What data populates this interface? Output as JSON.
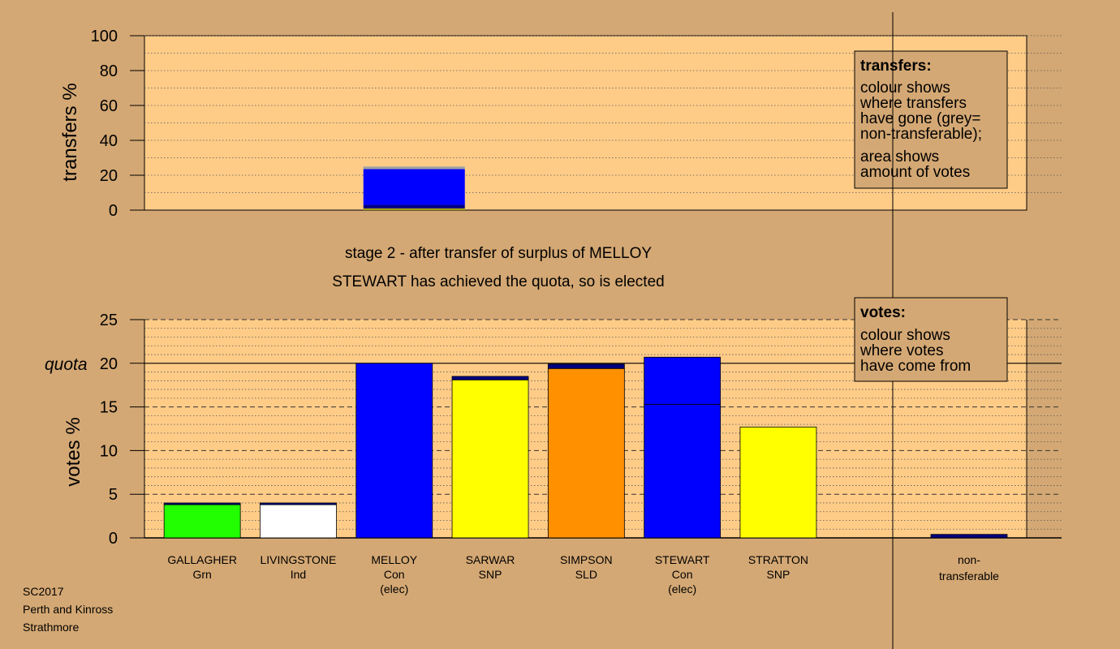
{
  "colors": {
    "background": "#d4a874",
    "panel": "#ffcc88",
    "grey": "#a0a0a0",
    "blue": "#0000ff",
    "yellow": "#ffff00",
    "orange": "#ff9000",
    "green": "#22ff00",
    "white": "#ffffff",
    "navy": "#000080",
    "olive": "#a0a000"
  },
  "stage_text": {
    "line1": "stage 2 - after transfer of surplus of MELLOY",
    "line2": "STEWART has achieved the quota, so is elected"
  },
  "footer": {
    "line1": "SC2017",
    "line2": "Perth and Kinross",
    "line3": "Strathmore"
  },
  "legend_transfers": {
    "title": "transfers:",
    "lines": [
      "colour shows",
      "where transfers",
      "have gone (grey=",
      "non-transferable);",
      "area shows",
      "amount of votes"
    ]
  },
  "legend_votes": {
    "title": "votes:",
    "lines": [
      "colour shows",
      "where votes",
      "have come from"
    ]
  },
  "chart_data": [
    {
      "type": "bar",
      "ylabel": "transfers %",
      "ylim": [
        0,
        100
      ],
      "yticks": [
        0,
        20,
        40,
        60,
        80,
        100
      ],
      "grid": "dotted",
      "legend": "top-right",
      "bars": [
        {
          "position": 3,
          "segments": [
            {
              "color": "olive",
              "from": 0,
              "to": 1
            },
            {
              "color": "navy",
              "from": 1,
              "to": 3
            },
            {
              "color": "blue",
              "from": 3,
              "to": 23.5
            },
            {
              "color": "grey",
              "from": 23.5,
              "to": 25
            }
          ]
        }
      ]
    },
    {
      "type": "bar",
      "ylabel": "votes %",
      "ylim": [
        0,
        25
      ],
      "yticks": [
        0,
        5,
        10,
        15,
        20,
        25
      ],
      "quota": 20,
      "quota_label": "quota",
      "grid": "dashed",
      "legend": "top-right",
      "categories": [
        {
          "name": "GALLAGHER",
          "party": "Grn",
          "status": "",
          "total": 4.0,
          "segments": [
            {
              "color": "green",
              "value": 3.8
            },
            {
              "color": "navy",
              "value": 0.2
            }
          ]
        },
        {
          "name": "LIVINGSTONE",
          "party": "Ind",
          "status": "",
          "total": 4.0,
          "segments": [
            {
              "color": "white",
              "value": 3.8
            },
            {
              "color": "navy",
              "value": 0.2
            }
          ]
        },
        {
          "name": "MELLOY",
          "party": "Con",
          "status": "(elec)",
          "total": 20.0,
          "segments": [
            {
              "color": "blue",
              "value": 20.0
            }
          ]
        },
        {
          "name": "SARWAR",
          "party": "SNP",
          "status": "",
          "total": 18.5,
          "segments": [
            {
              "color": "yellow",
              "value": 18.1
            },
            {
              "color": "navy",
              "value": 0.4
            }
          ]
        },
        {
          "name": "SIMPSON",
          "party": "SLD",
          "status": "",
          "total": 19.9,
          "segments": [
            {
              "color": "orange",
              "value": 19.4
            },
            {
              "color": "navy",
              "value": 0.5
            }
          ]
        },
        {
          "name": "STEWART",
          "party": "Con",
          "status": "(elec)",
          "total": 20.7,
          "segments": [
            {
              "color": "blue",
              "value": 15.3
            },
            {
              "color": "blue",
              "value": 5.4
            }
          ]
        },
        {
          "name": "STRATTON",
          "party": "SNP",
          "status": "",
          "total": 12.7,
          "segments": [
            {
              "color": "yellow",
              "value": 12.7
            }
          ]
        }
      ],
      "nontransferable": {
        "label_line1": "non-",
        "label_line2": "transferable",
        "value": 0.4,
        "color": "navy"
      }
    }
  ]
}
